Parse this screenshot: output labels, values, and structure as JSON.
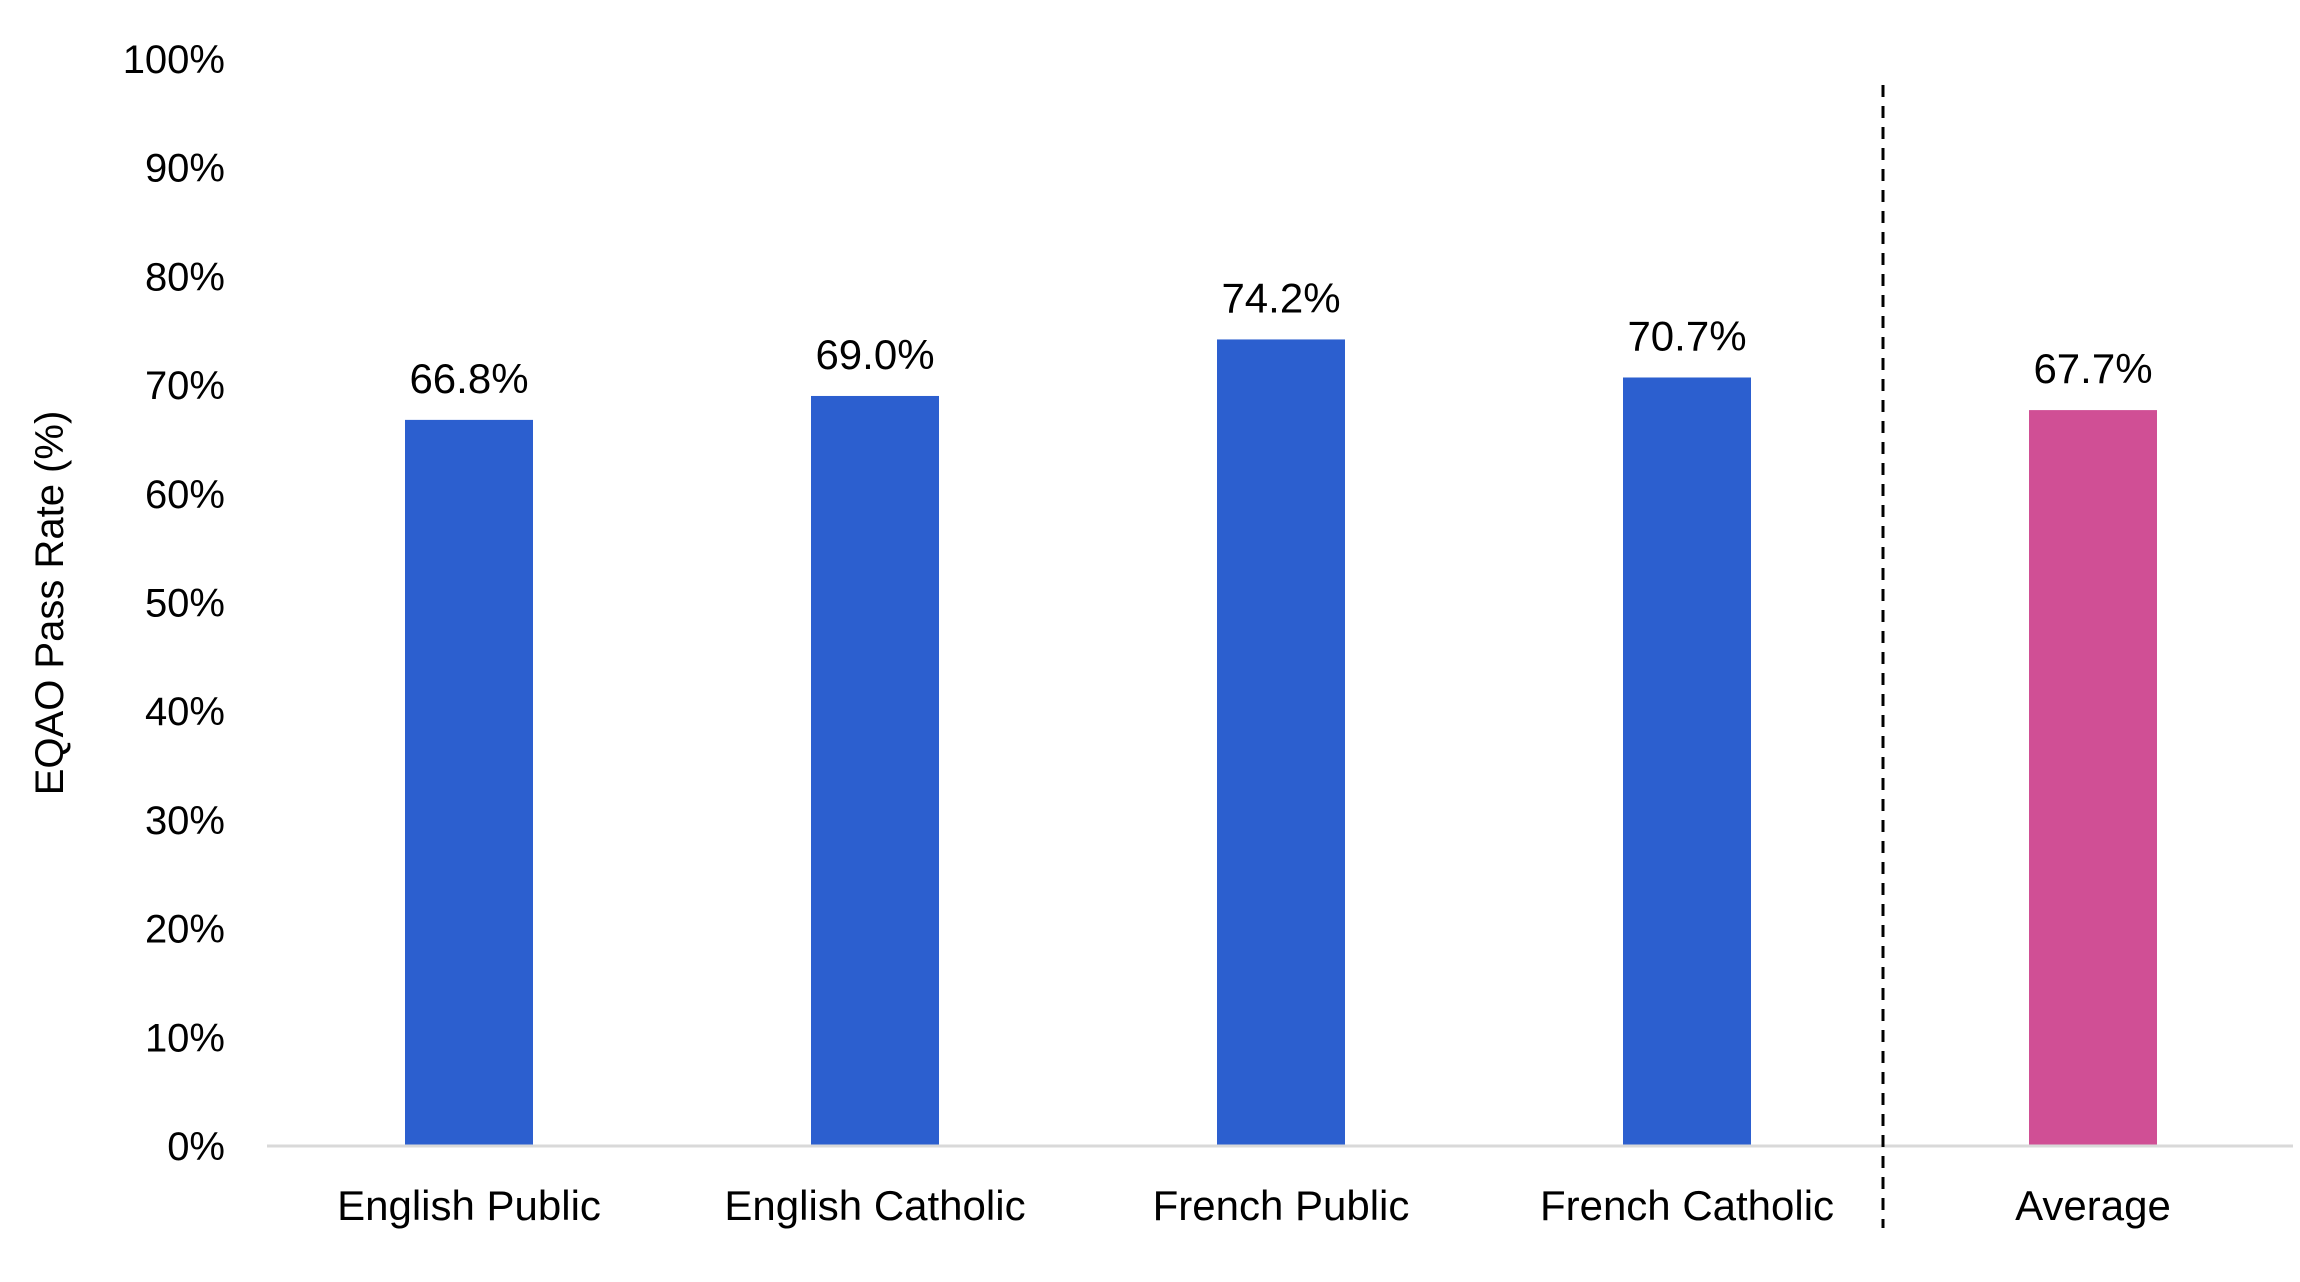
{
  "chart_data": {
    "type": "bar",
    "title": "",
    "xlabel": "",
    "ylabel": "EQAO Pass Rate (%)",
    "ylim": [
      0,
      100
    ],
    "y_tick_values": [
      0,
      10,
      20,
      30,
      40,
      50,
      60,
      70,
      80,
      90,
      100
    ],
    "y_tick_labels": [
      "0%",
      "10%",
      "20%",
      "30%",
      "40%",
      "50%",
      "60%",
      "70%",
      "80%",
      "90%",
      "100%"
    ],
    "categories": [
      "English Public",
      "English Catholic",
      "French Public",
      "French Catholic",
      "Average"
    ],
    "values": [
      66.8,
      69.0,
      74.2,
      70.7,
      67.7
    ],
    "data_labels": [
      "66.8%",
      "69.0%",
      "74.2%",
      "70.7%",
      "67.7%"
    ],
    "bar_colors": [
      "#2c5fcf",
      "#2c5fcf",
      "#2c5fcf",
      "#2c5fcf",
      "#d04f95"
    ],
    "separator_after_category": "French Catholic",
    "grid": false,
    "legend": "none"
  }
}
